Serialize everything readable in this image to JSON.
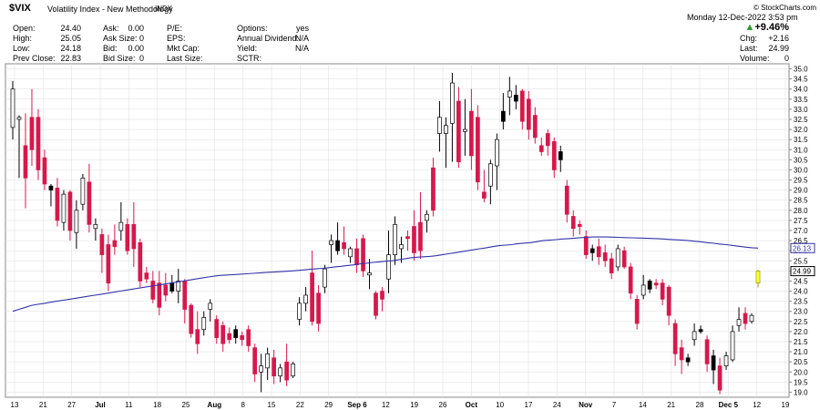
{
  "header": {
    "symbol": "$VIX",
    "name": "Volatility Index - New Methodology",
    "exchange": "INDX",
    "credit": "© StockCharts.com",
    "day": "Monday",
    "date": "12-Dec-2022",
    "time": "3:53 pm",
    "change_pct": "+9.46%",
    "col1": [
      {
        "label": "Open:",
        "value": "24.40"
      },
      {
        "label": "High:",
        "value": "25.05"
      },
      {
        "label": "Low:",
        "value": "24.18"
      },
      {
        "label": "Prev Close:",
        "value": "22.83"
      }
    ],
    "col2": [
      {
        "label": "Ask:",
        "value": "0.00"
      },
      {
        "label": "Ask Size:",
        "value": "0"
      },
      {
        "label": "Bid:",
        "value": "0.00"
      },
      {
        "label": "Bid Size:",
        "value": "0"
      }
    ],
    "col3": [
      {
        "label": "P/E:",
        "value": ""
      },
      {
        "label": "EPS:",
        "value": ""
      },
      {
        "label": "Mkt Cap:",
        "value": ""
      },
      {
        "label": "Last Size:",
        "value": ""
      }
    ],
    "col4": [
      {
        "label": "Options:",
        "value": "yes"
      },
      {
        "label": "Annual Dividend:",
        "value": "N/A"
      },
      {
        "label": "Yield:",
        "value": "N/A"
      },
      {
        "label": "SCTR:",
        "value": ""
      }
    ],
    "col5": [
      {
        "label": "Chg:",
        "value": "+2.16"
      },
      {
        "label": "Last:",
        "value": "24.99"
      },
      {
        "label": "Volume:",
        "value": "0"
      }
    ]
  },
  "chart_data": {
    "type": "candlestick",
    "ylim": [
      18.75,
      35.25
    ],
    "yticks": [
      "35.0",
      "34.5",
      "34.0",
      "33.5",
      "33.0",
      "32.5",
      "32.0",
      "31.5",
      "31.0",
      "30.5",
      "30.0",
      "29.5",
      "29.0",
      "28.5",
      "28.0",
      "27.5",
      "27.0",
      "26.5",
      "26.0",
      "25.5",
      "25.0",
      "24.5",
      "24.0",
      "23.5",
      "23.0",
      "22.5",
      "22.0",
      "21.5",
      "21.0",
      "20.5",
      "20.0",
      "19.5",
      "19.0"
    ],
    "xticks": [
      "13",
      "21",
      "27",
      "Jul",
      "11",
      "18",
      "25",
      "Aug",
      "8",
      "15",
      "22",
      "29",
      "Sep 6",
      "12",
      "19",
      "26",
      "Oct",
      "10",
      "17",
      "24",
      "Nov",
      "7",
      "14",
      "21",
      "28",
      "Dec 5",
      "12",
      "19"
    ],
    "ma_label": "26.13",
    "last_label": "24.99",
    "colors": {
      "up": "#ffffff",
      "down": "#d6184c",
      "black": "#000000",
      "ma": "#3333aa",
      "last": "#ffff33",
      "grid": "#dddddd"
    },
    "candles": [
      {
        "o": 32.1,
        "h": 34.4,
        "l": 31.5,
        "c": 34.0,
        "color": "up"
      },
      {
        "o": 32.5,
        "h": 32.7,
        "l": 29.6,
        "c": 32.6,
        "color": "up"
      },
      {
        "o": 31.2,
        "h": 32.8,
        "l": 28.1,
        "c": 29.6,
        "color": "down"
      },
      {
        "o": 32.6,
        "h": 34.0,
        "l": 30.2,
        "c": 31.0,
        "color": "down"
      },
      {
        "o": 32.6,
        "h": 33.0,
        "l": 29.5,
        "c": 30.0,
        "color": "down"
      },
      {
        "o": 30.6,
        "h": 31.0,
        "l": 29.0,
        "c": 29.3,
        "color": "down"
      },
      {
        "o": 29.2,
        "h": 29.3,
        "l": 28.2,
        "c": 29.0,
        "color": "black"
      },
      {
        "o": 29.1,
        "h": 29.6,
        "l": 27.2,
        "c": 27.5,
        "color": "down"
      },
      {
        "o": 27.4,
        "h": 29.0,
        "l": 27.0,
        "c": 28.8,
        "color": "up"
      },
      {
        "o": 28.9,
        "h": 29.0,
        "l": 26.5,
        "c": 27.0,
        "color": "down"
      },
      {
        "o": 26.9,
        "h": 28.5,
        "l": 26.1,
        "c": 28.0,
        "color": "up"
      },
      {
        "o": 28.3,
        "h": 29.8,
        "l": 28.0,
        "c": 29.6,
        "color": "up"
      },
      {
        "o": 29.4,
        "h": 30.3,
        "l": 26.9,
        "c": 27.3,
        "color": "down"
      },
      {
        "o": 27.1,
        "h": 27.6,
        "l": 26.5,
        "c": 27.3,
        "color": "up"
      },
      {
        "o": 26.8,
        "h": 27.1,
        "l": 24.9,
        "c": 25.8,
        "color": "down"
      },
      {
        "o": 26.3,
        "h": 26.8,
        "l": 24.0,
        "c": 24.4,
        "color": "down"
      },
      {
        "o": 26.2,
        "h": 27.3,
        "l": 25.8,
        "c": 26.5,
        "color": "down"
      },
      {
        "o": 27.0,
        "h": 28.4,
        "l": 26.5,
        "c": 27.4,
        "color": "up"
      },
      {
        "o": 27.3,
        "h": 27.6,
        "l": 25.8,
        "c": 26.0,
        "color": "down"
      },
      {
        "o": 27.3,
        "h": 28.4,
        "l": 25.2,
        "c": 26.1,
        "color": "down"
      },
      {
        "o": 26.4,
        "h": 26.6,
        "l": 24.2,
        "c": 24.5,
        "color": "down"
      },
      {
        "o": 24.9,
        "h": 25.2,
        "l": 24.4,
        "c": 24.6,
        "color": "down"
      },
      {
        "o": 24.5,
        "h": 25.0,
        "l": 23.4,
        "c": 23.6,
        "color": "down"
      },
      {
        "o": 24.4,
        "h": 25.0,
        "l": 22.8,
        "c": 23.2,
        "color": "down"
      },
      {
        "o": 24.3,
        "h": 24.9,
        "l": 23.5,
        "c": 23.8,
        "color": "down"
      },
      {
        "o": 24.4,
        "h": 24.8,
        "l": 23.9,
        "c": 24.0,
        "color": "black"
      },
      {
        "o": 24.0,
        "h": 25.1,
        "l": 23.4,
        "c": 24.5,
        "color": "up"
      },
      {
        "o": 24.5,
        "h": 24.6,
        "l": 22.4,
        "c": 23.1,
        "color": "down"
      },
      {
        "o": 23.3,
        "h": 23.4,
        "l": 21.7,
        "c": 21.9,
        "color": "down"
      },
      {
        "o": 22.1,
        "h": 23.0,
        "l": 20.9,
        "c": 21.4,
        "color": "down"
      },
      {
        "o": 22.1,
        "h": 23.0,
        "l": 21.8,
        "c": 22.7,
        "color": "up"
      },
      {
        "o": 23.4,
        "h": 23.6,
        "l": 22.5,
        "c": 23.1,
        "color": "up"
      },
      {
        "o": 22.6,
        "h": 22.8,
        "l": 21.4,
        "c": 21.7,
        "color": "down"
      },
      {
        "o": 22.3,
        "h": 22.5,
        "l": 21.0,
        "c": 21.4,
        "color": "down"
      },
      {
        "o": 21.9,
        "h": 22.2,
        "l": 21.4,
        "c": 21.6,
        "color": "down"
      },
      {
        "o": 21.7,
        "h": 22.3,
        "l": 21.4,
        "c": 22.1,
        "color": "black"
      },
      {
        "o": 21.8,
        "h": 22.0,
        "l": 21.3,
        "c": 21.6,
        "color": "down"
      },
      {
        "o": 22.1,
        "h": 22.3,
        "l": 21.0,
        "c": 21.3,
        "color": "down"
      },
      {
        "o": 21.2,
        "h": 21.4,
        "l": 19.5,
        "c": 19.9,
        "color": "down"
      },
      {
        "o": 20.0,
        "h": 20.9,
        "l": 19.0,
        "c": 20.3,
        "color": "up"
      },
      {
        "o": 20.2,
        "h": 21.2,
        "l": 19.6,
        "c": 20.9,
        "color": "up"
      },
      {
        "o": 20.7,
        "h": 21.1,
        "l": 19.4,
        "c": 19.8,
        "color": "down"
      },
      {
        "o": 19.8,
        "h": 20.4,
        "l": 19.5,
        "c": 20.2,
        "color": "up"
      },
      {
        "o": 20.5,
        "h": 21.4,
        "l": 19.3,
        "c": 19.6,
        "color": "down"
      },
      {
        "o": 19.8,
        "h": 20.5,
        "l": 19.7,
        "c": 20.4,
        "color": "up"
      },
      {
        "o": 22.6,
        "h": 23.7,
        "l": 22.3,
        "c": 23.4,
        "color": "up"
      },
      {
        "o": 23.4,
        "h": 24.2,
        "l": 23.0,
        "c": 23.8,
        "color": "up"
      },
      {
        "o": 24.9,
        "h": 26.0,
        "l": 22.3,
        "c": 22.5,
        "color": "down"
      },
      {
        "o": 23.9,
        "h": 24.3,
        "l": 22.0,
        "c": 22.4,
        "color": "down"
      },
      {
        "o": 24.2,
        "h": 25.3,
        "l": 23.9,
        "c": 25.1,
        "color": "up"
      },
      {
        "o": 26.3,
        "h": 26.8,
        "l": 25.4,
        "c": 26.5,
        "color": "up"
      },
      {
        "o": 26.5,
        "h": 27.4,
        "l": 25.8,
        "c": 26.0,
        "color": "black"
      },
      {
        "o": 26.1,
        "h": 27.2,
        "l": 25.8,
        "c": 26.4,
        "color": "down"
      },
      {
        "o": 25.7,
        "h": 26.2,
        "l": 25.4,
        "c": 26.1,
        "color": "up"
      },
      {
        "o": 26.1,
        "h": 26.6,
        "l": 24.9,
        "c": 25.3,
        "color": "down"
      },
      {
        "o": 26.6,
        "h": 26.8,
        "l": 24.7,
        "c": 25.0,
        "color": "down"
      },
      {
        "o": 24.8,
        "h": 25.6,
        "l": 24.1,
        "c": 24.9,
        "color": "up"
      },
      {
        "o": 23.9,
        "h": 24.0,
        "l": 22.6,
        "c": 22.8,
        "color": "down"
      },
      {
        "o": 24.0,
        "h": 24.2,
        "l": 23.0,
        "c": 23.6,
        "color": "down"
      },
      {
        "o": 24.6,
        "h": 27.0,
        "l": 23.9,
        "c": 25.8,
        "color": "up"
      },
      {
        "o": 25.8,
        "h": 27.7,
        "l": 25.3,
        "c": 27.3,
        "color": "up"
      },
      {
        "o": 26.1,
        "h": 26.7,
        "l": 25.4,
        "c": 26.3,
        "color": "up"
      },
      {
        "o": 26.6,
        "h": 27.0,
        "l": 26.0,
        "c": 26.7,
        "color": "down"
      },
      {
        "o": 27.2,
        "h": 28.0,
        "l": 25.5,
        "c": 25.9,
        "color": "down"
      },
      {
        "o": 27.4,
        "h": 28.9,
        "l": 25.6,
        "c": 26.0,
        "color": "down"
      },
      {
        "o": 27.5,
        "h": 28.0,
        "l": 26.9,
        "c": 27.8,
        "color": "up"
      },
      {
        "o": 30.1,
        "h": 30.6,
        "l": 27.7,
        "c": 28.0,
        "color": "down"
      },
      {
        "o": 31.8,
        "h": 33.4,
        "l": 30.9,
        "c": 32.6,
        "color": "up"
      },
      {
        "o": 31.8,
        "h": 32.6,
        "l": 30.1,
        "c": 32.2,
        "color": "up"
      },
      {
        "o": 32.3,
        "h": 34.8,
        "l": 30.4,
        "c": 34.3,
        "color": "up"
      },
      {
        "o": 33.4,
        "h": 34.1,
        "l": 30.1,
        "c": 30.4,
        "color": "down"
      },
      {
        "o": 32.0,
        "h": 33.5,
        "l": 30.7,
        "c": 31.9,
        "color": "up"
      },
      {
        "o": 32.9,
        "h": 34.0,
        "l": 30.0,
        "c": 30.7,
        "color": "down"
      },
      {
        "o": 32.6,
        "h": 33.2,
        "l": 29.0,
        "c": 29.4,
        "color": "down"
      },
      {
        "o": 28.9,
        "h": 30.0,
        "l": 28.4,
        "c": 28.6,
        "color": "down"
      },
      {
        "o": 29.2,
        "h": 30.5,
        "l": 28.3,
        "c": 30.3,
        "color": "up"
      },
      {
        "o": 30.2,
        "h": 31.8,
        "l": 29.0,
        "c": 31.5,
        "color": "up"
      },
      {
        "o": 32.4,
        "h": 33.8,
        "l": 32.0,
        "c": 32.9,
        "color": "black"
      },
      {
        "o": 33.6,
        "h": 34.6,
        "l": 32.7,
        "c": 33.9,
        "color": "up"
      },
      {
        "o": 33.7,
        "h": 34.2,
        "l": 33.0,
        "c": 33.4,
        "color": "black"
      },
      {
        "o": 33.9,
        "h": 34.0,
        "l": 32.0,
        "c": 32.4,
        "color": "down"
      },
      {
        "o": 33.5,
        "h": 33.9,
        "l": 31.5,
        "c": 32.0,
        "color": "down"
      },
      {
        "o": 32.7,
        "h": 33.1,
        "l": 31.3,
        "c": 31.6,
        "color": "down"
      },
      {
        "o": 31.2,
        "h": 31.6,
        "l": 30.7,
        "c": 30.9,
        "color": "down"
      },
      {
        "o": 31.8,
        "h": 32.0,
        "l": 30.7,
        "c": 31.2,
        "color": "down"
      },
      {
        "o": 31.4,
        "h": 31.6,
        "l": 29.6,
        "c": 30.0,
        "color": "down"
      },
      {
        "o": 30.9,
        "h": 31.2,
        "l": 29.9,
        "c": 30.5,
        "color": "black"
      },
      {
        "o": 29.2,
        "h": 29.5,
        "l": 27.4,
        "c": 27.8,
        "color": "down"
      },
      {
        "o": 27.7,
        "h": 28.0,
        "l": 26.7,
        "c": 27.1,
        "color": "down"
      },
      {
        "o": 27.2,
        "h": 27.5,
        "l": 26.8,
        "c": 27.3,
        "color": "down"
      },
      {
        "o": 26.7,
        "h": 27.0,
        "l": 25.6,
        "c": 25.8,
        "color": "down"
      },
      {
        "o": 26.1,
        "h": 26.3,
        "l": 25.5,
        "c": 25.9,
        "color": "black"
      },
      {
        "o": 26.2,
        "h": 26.6,
        "l": 25.3,
        "c": 25.7,
        "color": "down"
      },
      {
        "o": 25.9,
        "h": 26.3,
        "l": 25.2,
        "c": 25.5,
        "color": "down"
      },
      {
        "o": 25.6,
        "h": 25.9,
        "l": 24.6,
        "c": 24.9,
        "color": "down"
      },
      {
        "o": 25.2,
        "h": 26.3,
        "l": 25.0,
        "c": 26.1,
        "color": "up"
      },
      {
        "o": 26.0,
        "h": 26.2,
        "l": 25.1,
        "c": 25.2,
        "color": "down"
      },
      {
        "o": 25.2,
        "h": 25.4,
        "l": 23.6,
        "c": 23.9,
        "color": "down"
      },
      {
        "o": 23.6,
        "h": 23.8,
        "l": 22.1,
        "c": 22.4,
        "color": "down"
      },
      {
        "o": 23.8,
        "h": 24.8,
        "l": 23.6,
        "c": 24.3,
        "color": "up"
      },
      {
        "o": 24.5,
        "h": 24.6,
        "l": 23.9,
        "c": 24.1,
        "color": "black"
      },
      {
        "o": 24.3,
        "h": 24.6,
        "l": 24.1,
        "c": 24.4,
        "color": "down"
      },
      {
        "o": 24.4,
        "h": 24.6,
        "l": 23.3,
        "c": 23.6,
        "color": "down"
      },
      {
        "o": 24.2,
        "h": 24.3,
        "l": 22.3,
        "c": 22.8,
        "color": "down"
      },
      {
        "o": 22.4,
        "h": 22.6,
        "l": 20.3,
        "c": 20.9,
        "color": "down"
      },
      {
        "o": 21.2,
        "h": 21.6,
        "l": 19.9,
        "c": 20.6,
        "color": "down"
      },
      {
        "o": 20.7,
        "h": 20.9,
        "l": 20.3,
        "c": 20.5,
        "color": "black"
      },
      {
        "o": 21.6,
        "h": 22.4,
        "l": 21.3,
        "c": 22.0,
        "color": "up"
      },
      {
        "o": 22.0,
        "h": 22.3,
        "l": 21.9,
        "c": 22.1,
        "color": "black"
      },
      {
        "o": 21.6,
        "h": 21.8,
        "l": 20.0,
        "c": 20.4,
        "color": "down"
      },
      {
        "o": 20.8,
        "h": 21.1,
        "l": 19.4,
        "c": 20.1,
        "color": "black"
      },
      {
        "o": 20.3,
        "h": 20.7,
        "l": 18.9,
        "c": 19.1,
        "color": "down"
      },
      {
        "o": 20.3,
        "h": 21.0,
        "l": 20.1,
        "c": 20.8,
        "color": "up"
      },
      {
        "o": 20.6,
        "h": 22.3,
        "l": 20.5,
        "c": 22.0,
        "color": "up"
      },
      {
        "o": 22.3,
        "h": 23.2,
        "l": 22.0,
        "c": 22.6,
        "color": "up"
      },
      {
        "o": 22.9,
        "h": 23.2,
        "l": 22.1,
        "c": 22.4,
        "color": "down"
      },
      {
        "o": 22.5,
        "h": 22.9,
        "l": 22.4,
        "c": 22.8,
        "color": "up"
      },
      {
        "o": 24.4,
        "h": 25.05,
        "l": 24.18,
        "c": 24.99,
        "color": "last"
      }
    ],
    "ma": [
      23.0,
      23.1,
      23.2,
      23.3,
      23.35,
      23.4,
      23.45,
      23.5,
      23.55,
      23.6,
      23.65,
      23.7,
      23.75,
      23.8,
      23.85,
      23.9,
      23.95,
      24.0,
      24.05,
      24.1,
      24.15,
      24.2,
      24.25,
      24.3,
      24.35,
      24.4,
      24.45,
      24.5,
      24.55,
      24.6,
      24.65,
      24.7,
      24.75,
      24.78,
      24.8,
      24.82,
      24.84,
      24.86,
      24.88,
      24.9,
      24.92,
      24.94,
      24.96,
      24.98,
      25.0,
      25.02,
      25.05,
      25.08,
      25.1,
      25.13,
      25.16,
      25.2,
      25.23,
      25.27,
      25.3,
      25.35,
      25.38,
      25.42,
      25.45,
      25.48,
      25.5,
      25.55,
      25.6,
      25.65,
      25.68,
      25.7,
      25.72,
      25.75,
      25.8,
      25.85,
      25.9,
      25.95,
      26.0,
      26.05,
      26.1,
      26.15,
      26.2,
      26.25,
      26.28,
      26.3,
      26.35,
      26.38,
      26.4,
      26.45,
      26.5,
      26.52,
      26.55,
      26.58,
      26.6,
      26.62,
      26.65,
      26.67,
      26.68,
      26.68,
      26.68,
      26.67,
      26.66,
      26.65,
      26.64,
      26.63,
      26.62,
      26.61,
      26.6,
      26.58,
      26.56,
      26.54,
      26.52,
      26.5,
      26.47,
      26.44,
      26.4,
      26.37,
      26.33,
      26.3,
      26.26,
      26.22,
      26.18,
      26.15,
      26.13
    ]
  }
}
